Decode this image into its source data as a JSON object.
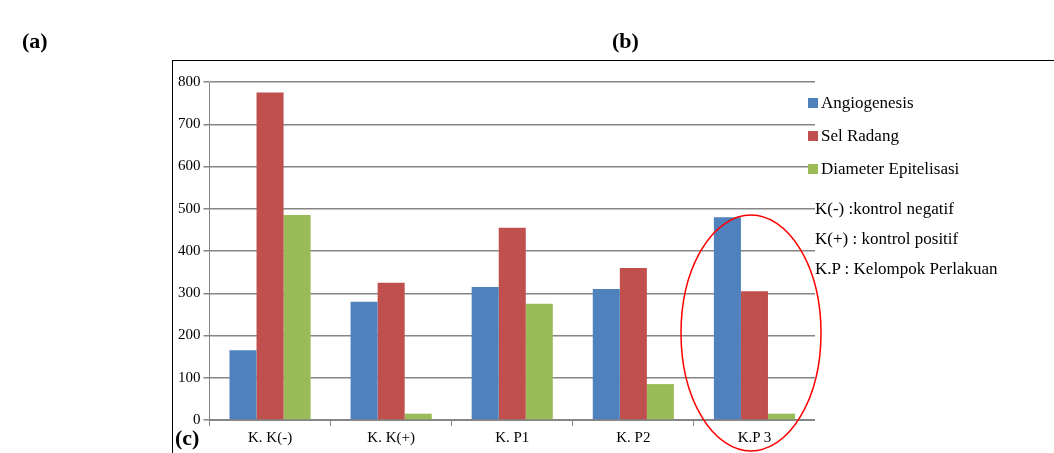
{
  "chart_data": {
    "type": "bar",
    "categories": [
      "K. K(-)",
      "K. K(+)",
      "K. P1",
      "K. P2",
      "K.P 3"
    ],
    "series": [
      {
        "name": "Angiogenesis",
        "color": "#4f81bd",
        "values": [
          165,
          280,
          315,
          310,
          480
        ]
      },
      {
        "name": "Sel Radang",
        "color": "#c0504d",
        "values": [
          775,
          325,
          455,
          360,
          305
        ]
      },
      {
        "name": "Diameter Epitelisasi",
        "color": "#9bbb59",
        "values": [
          485,
          15,
          275,
          85,
          15
        ]
      }
    ],
    "ylim": [
      0,
      800
    ],
    "yticks": [
      0,
      100,
      200,
      300,
      400,
      500,
      600,
      700,
      800
    ],
    "grid": "y",
    "legend": "right",
    "annotations": [
      "(a)",
      "(b)",
      "(c)",
      "K(-)  :kontrol negatif",
      "K(+) : kontrol positif",
      "K.P  : Kelompok Perlakuan"
    ]
  }
}
